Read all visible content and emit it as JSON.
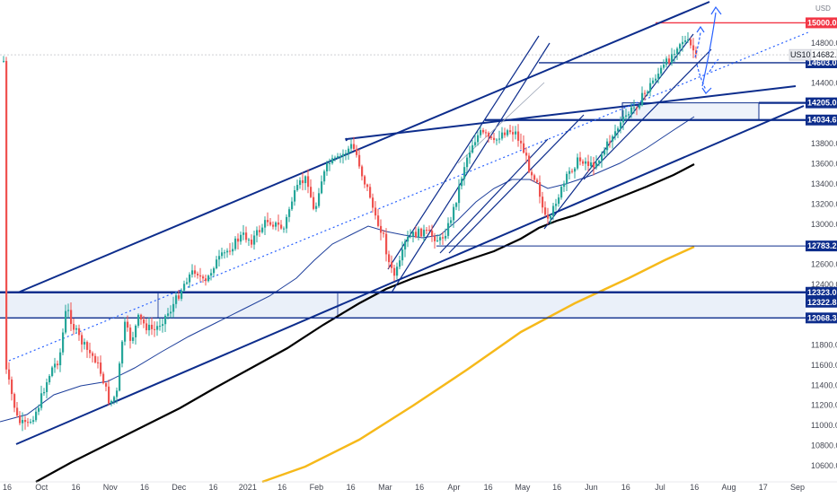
{
  "chart_data": {
    "type": "candlestick",
    "symbol_label": "US100",
    "currency_label": "USD",
    "y_axis": {
      "ticks": [
        "15000.0",
        "14800.0",
        "14600.0",
        "14400.0",
        "14200.0",
        "14000.0",
        "13800.0",
        "13600.0",
        "13400.0",
        "13200.0",
        "13000.0",
        "12800.0",
        "12600.0",
        "12400.0",
        "12200.0",
        "12000.0",
        "11800.0",
        "11600.0",
        "11400.0",
        "11200.0",
        "11000.0",
        "10800.0",
        "10600.0"
      ],
      "ylim": [
        10440,
        15200
      ]
    },
    "x_axis": {
      "ticks": [
        "16",
        "Oct",
        "16",
        "Nov",
        "16",
        "Dec",
        "16",
        "2021",
        "16",
        "Feb",
        "16",
        "Mar",
        "16",
        "Apr",
        "16",
        "May",
        "16",
        "Jun",
        "16",
        "Jul",
        "16",
        "Aug",
        "17",
        "Sep"
      ]
    },
    "current_price": {
      "label": "US100",
      "value": "14682.1"
    },
    "levels": [
      {
        "value": "15000.0",
        "color": "#f23645",
        "style": "solid-red"
      },
      {
        "value": "14603.0",
        "color": "#0d2d8c",
        "style": "solid"
      },
      {
        "value": "14205.0",
        "color": "#0d2d8c",
        "style": "thick"
      },
      {
        "value": "14034.6",
        "color": "#0d2d8c",
        "style": "thick"
      },
      {
        "value": "12783.2",
        "color": "#0d2d8c",
        "style": "thin"
      },
      {
        "value": "12323.0",
        "color": "#0d2d8c",
        "style": "thick"
      },
      {
        "value": "12322.8",
        "color": "#0d2d8c",
        "style": "thick"
      },
      {
        "value": "12068.3",
        "color": "#0d2d8c",
        "style": "solid"
      }
    ],
    "colors": {
      "up": "#26a69a",
      "down": "#ef5350",
      "ma_fast": "#1e3f9b",
      "ma_slow": "#000000",
      "ma_long": "#f6b91a",
      "trendline": "#0d2d8c",
      "projection": "#2962ff"
    },
    "grid": false
  }
}
